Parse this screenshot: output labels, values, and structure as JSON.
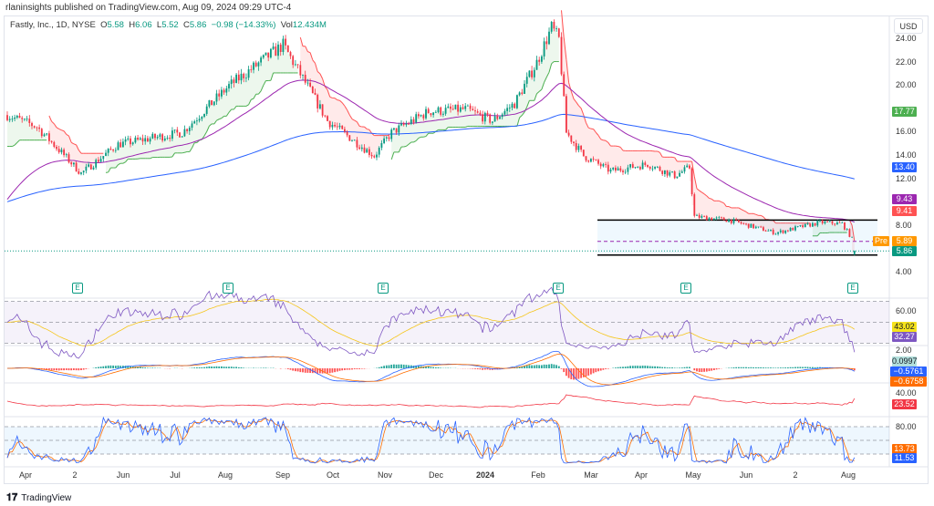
{
  "publisher": "rlaninsights published on TradingView.com, Aug 09, 2024 09:29 UTC-4",
  "legend": {
    "symbol": "Fastly, Inc., 1D, NYSE",
    "o_label": "O",
    "o": "5.58",
    "h_label": "H",
    "h": "6.06",
    "l_label": "L",
    "l": "5.52",
    "c_label": "C",
    "c": "5.86",
    "change": "−0.98 (−14.33%)",
    "vol_label": "Vol",
    "vol": "12.434M"
  },
  "currency": "USD",
  "footer": "TradingView",
  "colors": {
    "up": "#089981",
    "down": "#f23645",
    "ma_fast": "#9c27b0",
    "ma_slow": "#2962ff"
  },
  "tags": {
    "st_green": {
      "text": "17.77",
      "color": "#4caf50"
    },
    "ma_slow": {
      "text": "13.40",
      "color": "#2962ff"
    },
    "ma_fast": {
      "text": "9.43",
      "color": "#9c27b0"
    },
    "st_red": {
      "text": "9.41",
      "color": "#ff5252"
    },
    "pre_label": "Pre",
    "pre": {
      "text": "5.89",
      "color": "#ff9800"
    },
    "last": {
      "text": "5.86",
      "color": "#089981"
    },
    "rsi_ma": {
      "text": "43.02",
      "color": "#f5e21b"
    },
    "rsi": {
      "text": "32.27",
      "color": "#7e57c2"
    },
    "hist": {
      "text": "0.0997",
      "color": "#b2dfdb"
    },
    "macd": {
      "text": "−0.5761",
      "color": "#2962ff"
    },
    "signal": {
      "text": "−0.6758",
      "color": "#ff6d00"
    },
    "adx": {
      "text": "23.52",
      "color": "#f23645"
    },
    "stoch_d": {
      "text": "13.73",
      "color": "#ff6d00"
    },
    "stoch_k": {
      "text": "11.53",
      "color": "#2962ff"
    }
  },
  "earnings_label": "E",
  "chart_data": {
    "type": "candlestick",
    "title": "Fastly, Inc., 1D, NYSE",
    "price_axis": {
      "ticks": [
        "24.00",
        "22.00",
        "20.00",
        "16.00",
        "14.00",
        "12.00",
        "8.00",
        "4.00"
      ],
      "range": [
        4,
        24
      ]
    },
    "rsi_axis": [
      "60.00"
    ],
    "macd_axis": [
      "2.00"
    ],
    "adx_axis": [
      "40.00"
    ],
    "stoch_axis": [
      "80.00"
    ],
    "x_ticks": [
      "Apr",
      "2",
      "Jun",
      "Jul",
      "Aug",
      "Sep",
      "Oct",
      "Nov",
      "Dec",
      "2024",
      "Feb",
      "Mar",
      "Apr",
      "May",
      "Jun",
      "2",
      "Aug"
    ],
    "keypoints": [
      [
        0,
        17.5
      ],
      [
        12,
        16.5
      ],
      [
        30,
        12.5
      ],
      [
        45,
        15
      ],
      [
        71,
        16
      ],
      [
        90,
        20
      ],
      [
        112,
        23.5
      ],
      [
        119,
        21
      ],
      [
        130,
        17
      ],
      [
        149,
        14
      ],
      [
        156,
        16
      ],
      [
        171,
        17.8
      ],
      [
        186,
        18
      ],
      [
        197,
        17
      ],
      [
        206,
        18.5
      ],
      [
        215,
        22
      ],
      [
        221,
        25
      ],
      [
        224,
        24
      ],
      [
        227,
        16
      ],
      [
        234,
        14
      ],
      [
        245,
        12.7
      ],
      [
        260,
        13.3
      ],
      [
        271,
        12.3
      ],
      [
        277,
        13
      ],
      [
        279,
        8.8
      ],
      [
        293,
        8.5
      ],
      [
        312,
        7.4
      ],
      [
        330,
        8.3
      ],
      [
        339,
        8.2
      ],
      [
        343,
        6.9
      ],
      [
        344,
        5.86
      ]
    ],
    "range_box": {
      "upper": 8.5,
      "lower": 5.5
    },
    "premarket": 5.89,
    "last": 5.86
  }
}
